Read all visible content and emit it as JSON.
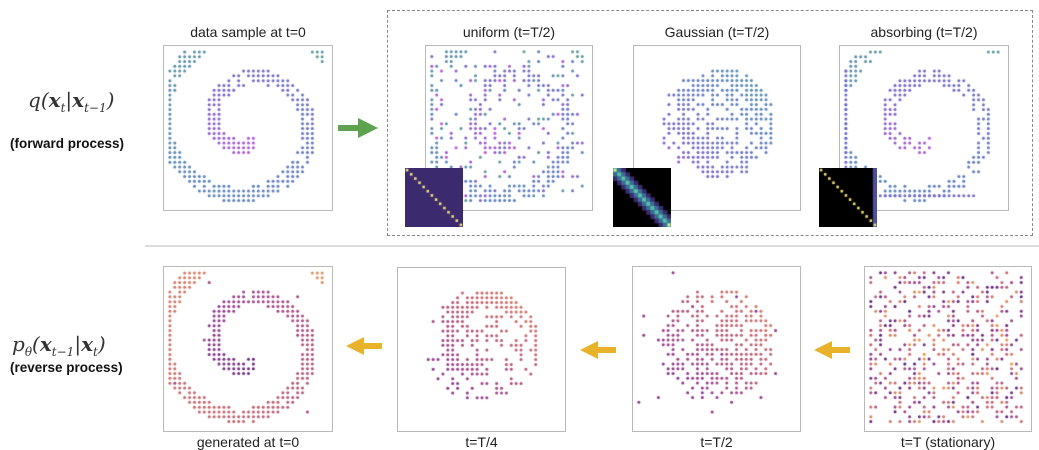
{
  "forward": {
    "math": {
      "func": "q",
      "arg1": "x",
      "sub1": "t",
      "arg2": "x",
      "sub2": "t−1"
    },
    "label": "(forward process)",
    "panels": [
      {
        "title": "data sample at t=0",
        "kind": "spiral",
        "palette": "viridis"
      },
      {
        "title": "uniform (t=T/2)",
        "kind": "uniform",
        "palette": "viridis",
        "matrix": "uniform"
      },
      {
        "title": "Gaussian (t=T/2)",
        "kind": "gaussian",
        "palette": "viridis",
        "matrix": "gaussian"
      },
      {
        "title": "absorbing (t=T/2)",
        "kind": "absorbing",
        "palette": "viridis",
        "matrix": "absorbing"
      }
    ],
    "arrow_color": "#5da34f"
  },
  "reverse": {
    "math": {
      "func": "p",
      "funcsub": "θ",
      "arg1": "x",
      "sub1": "t−1",
      "arg2": "x",
      "sub2": "t"
    },
    "label": "(reverse process)",
    "panels": [
      {
        "title": "generated at t=0",
        "kind": "spiral_gen",
        "palette": "plasma"
      },
      {
        "title": "t=T/4",
        "kind": "rev_q",
        "palette": "plasma"
      },
      {
        "title": "t=T/2",
        "kind": "rev_h",
        "palette": "plasma"
      },
      {
        "title": "t=T (stationary)",
        "kind": "random",
        "palette": "plasma"
      }
    ],
    "arrow_color": "#e8b32a"
  },
  "colors": {
    "panel_border": "#b9b9b9",
    "dashed_border": "#888888",
    "separator": "#dcdcdc",
    "matrix_uniform_bg": "#3b2a6e",
    "matrix_diag": "#f1e27a",
    "matrix_gauss_band": "#4fb3a3",
    "matrix_absorb_col": "#4b4f9c"
  }
}
